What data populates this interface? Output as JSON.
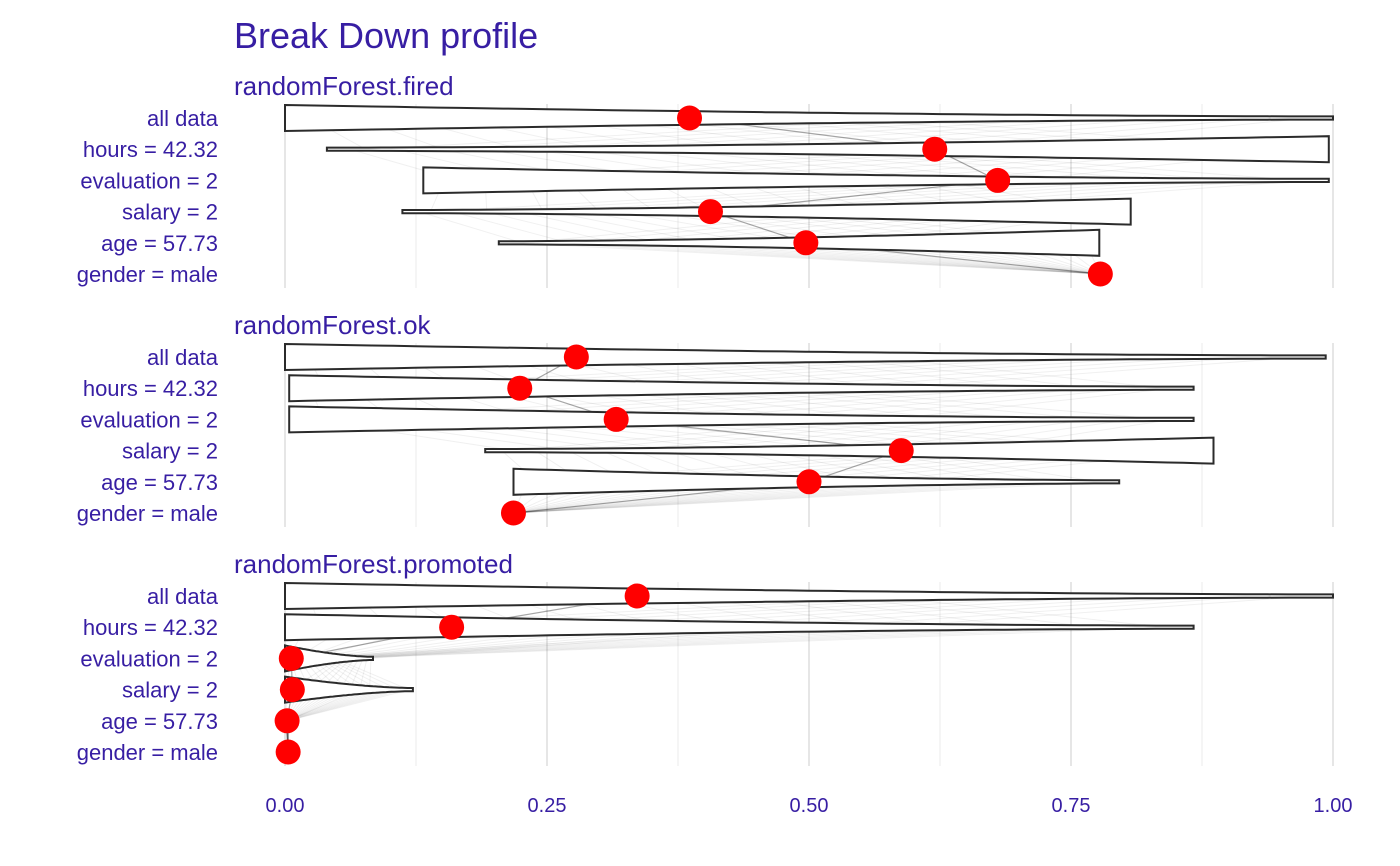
{
  "chart_data": {
    "type": "violin",
    "title": "Break Down profile",
    "xlabel": "",
    "ylabel": "",
    "xlim": [
      0,
      1
    ],
    "x_ticks": [
      "0.00",
      "0.25",
      "0.50",
      "0.75",
      "1.00"
    ],
    "x_tick_values": [
      0,
      0.25,
      0.5,
      0.75,
      1
    ],
    "grid": true,
    "colors": {
      "title": "#371ea3",
      "point": "#ff0000",
      "outline": "#2b2b2b",
      "grid": "#e6e6e6"
    },
    "panels": [
      {
        "label": "randomForest.fired",
        "variables": [
          "all data",
          "hours = 42.32",
          "evaluation = 2",
          "salary = 2",
          "age = 57.73",
          "gender = male"
        ],
        "points": [
          0.386,
          0.62,
          0.68,
          0.406,
          0.497,
          0.778
        ],
        "ranges": [
          [
            0,
            1
          ],
          [
            0.04,
            0.996
          ],
          [
            0.132,
            0.996
          ],
          [
            0.112,
            0.807
          ],
          [
            0.204,
            0.777
          ],
          null
        ],
        "bulge": [
          "left",
          "right",
          "left",
          "right",
          "right",
          null
        ]
      },
      {
        "label": "randomForest.ok",
        "variables": [
          "all data",
          "hours = 42.32",
          "evaluation = 2",
          "salary = 2",
          "age = 57.73",
          "gender = male"
        ],
        "points": [
          0.278,
          0.224,
          0.316,
          0.588,
          0.5,
          0.218
        ],
        "ranges": [
          [
            0,
            0.993
          ],
          [
            0.004,
            0.867
          ],
          [
            0.004,
            0.867
          ],
          [
            0.191,
            0.886
          ],
          [
            0.218,
            0.796
          ],
          null
        ],
        "bulge": [
          "left",
          "left",
          "left",
          "right",
          "left",
          null
        ]
      },
      {
        "label": "randomForest.promoted",
        "variables": [
          "all data",
          "hours = 42.32",
          "evaluation = 2",
          "salary = 2",
          "age = 57.73",
          "gender = male"
        ],
        "points": [
          0.336,
          0.159,
          0.006,
          0.007,
          0.002,
          0.003
        ],
        "ranges": [
          [
            0,
            1
          ],
          [
            0,
            0.867
          ],
          [
            0,
            0.084
          ],
          [
            0,
            0.122
          ],
          [
            0,
            0.004
          ],
          null
        ],
        "bulge": [
          "left",
          "left",
          "left",
          "left",
          "left",
          null
        ]
      }
    ]
  }
}
